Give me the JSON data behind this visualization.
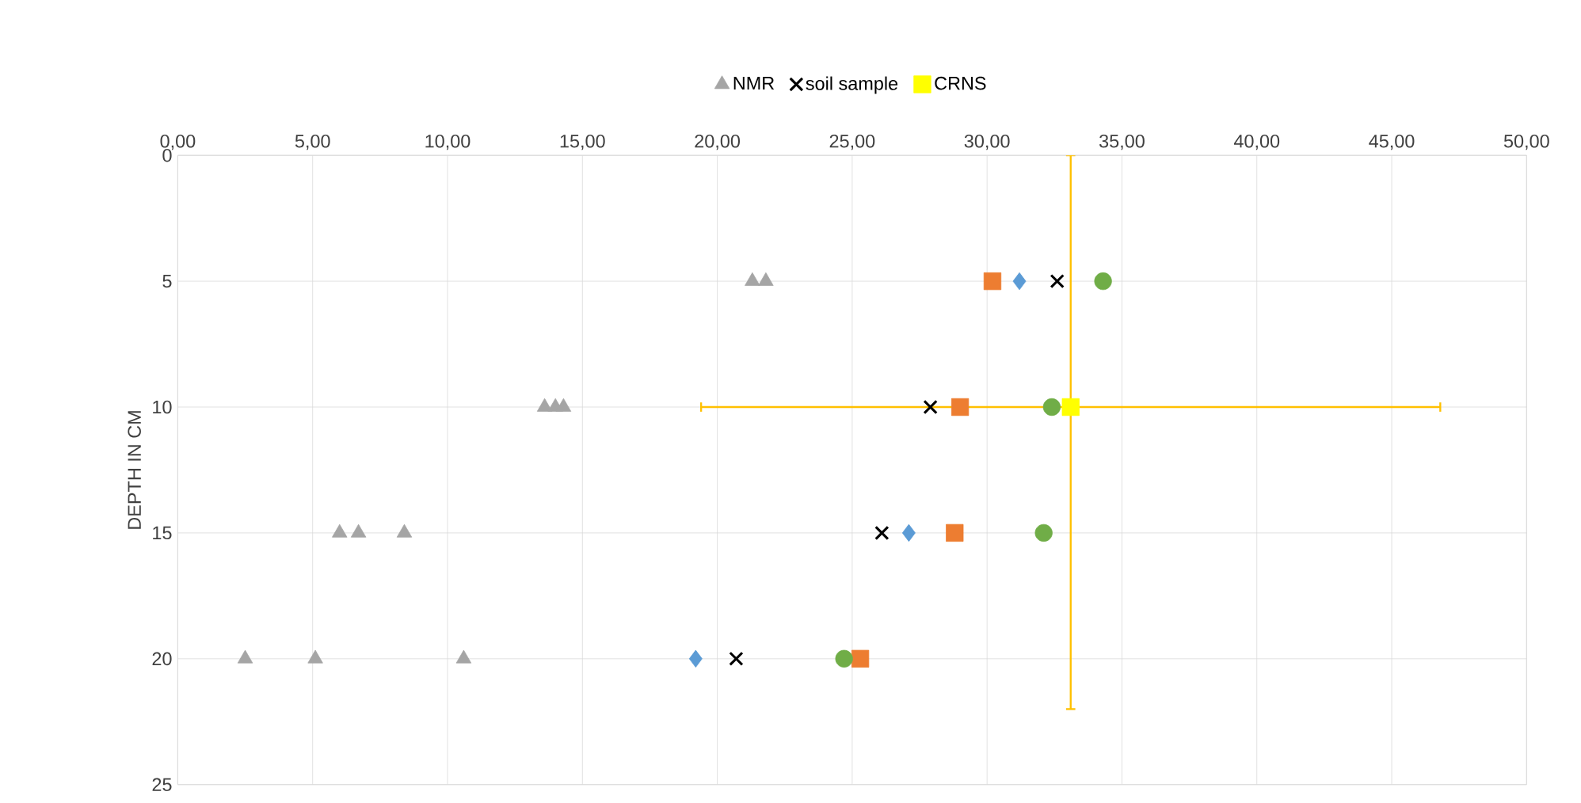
{
  "chart_data": {
    "type": "scatter",
    "ylabel": "DEPTH IN CM",
    "xlim": [
      0,
      50
    ],
    "ylim": [
      25,
      0
    ],
    "xticks": [
      {
        "value": 0,
        "label": "0,00"
      },
      {
        "value": 5,
        "label": "5,00"
      },
      {
        "value": 10,
        "label": "10,00"
      },
      {
        "value": 15,
        "label": "15,00"
      },
      {
        "value": 20,
        "label": "20,00"
      },
      {
        "value": 25,
        "label": "25,00"
      },
      {
        "value": 30,
        "label": "30,00"
      },
      {
        "value": 35,
        "label": "35,00"
      },
      {
        "value": 40,
        "label": "40,00"
      },
      {
        "value": 45,
        "label": "45,00"
      },
      {
        "value": 50,
        "label": "50,00"
      }
    ],
    "yticks": [
      0,
      5,
      10,
      15,
      20,
      25
    ],
    "grid": true,
    "legend": "top",
    "series": [
      {
        "color": "#5b9bd5",
        "marker": "diamond",
        "x": [
          31.2,
          27.1,
          19.2
        ],
        "values": [
          5,
          15,
          20
        ]
      },
      {
        "color": "#ed7d31",
        "marker": "square",
        "x": [
          30.2,
          29.0,
          28.8,
          25.3
        ],
        "values": [
          5,
          10,
          15,
          20
        ]
      },
      {
        "name": "NMR",
        "color": "#a5a5a5",
        "marker": "triangle",
        "x": [
          21.3,
          21.8,
          13.6,
          14.0,
          14.3,
          6.0,
          6.7,
          8.4,
          2.5,
          5.1,
          10.6
        ],
        "values": [
          5,
          5,
          10,
          10,
          10,
          15,
          15,
          15,
          20,
          20,
          20
        ]
      },
      {
        "color": "#70ad47",
        "marker": "circle",
        "x": [
          34.3,
          32.4,
          32.1,
          24.7
        ],
        "values": [
          5,
          10,
          15,
          20
        ]
      },
      {
        "name": "soil sample",
        "color": "#000000",
        "marker": "cross",
        "x": [
          32.6,
          27.9,
          26.1,
          20.7
        ],
        "values": [
          5,
          10,
          15,
          20
        ]
      },
      {
        "name": "CRNS",
        "color": "#ffff00",
        "marker": "square",
        "x": [
          33.1
        ],
        "values": [
          10
        ],
        "xerrors": [
          [
            19.4,
            46.8
          ]
        ],
        "errors": [
          [
            0,
            22.0
          ]
        ]
      }
    ]
  }
}
